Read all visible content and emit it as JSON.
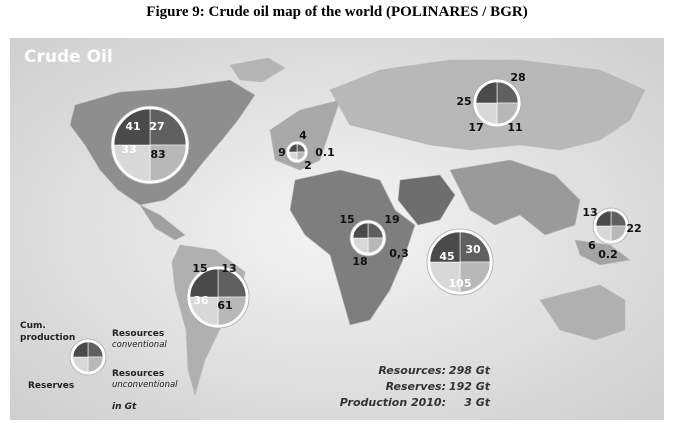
{
  "title": "Figure 9: Crude oil map of the world (POLINARES / BGR)",
  "map": {
    "heading": "Crude Oil",
    "regions": [
      {
        "labels": [
          "41",
          "27",
          "33",
          "83"
        ]
      },
      {
        "labels": [
          "4",
          "9",
          "0.1",
          "2"
        ]
      },
      {
        "labels": [
          "28",
          "25",
          "17",
          "11"
        ]
      },
      {
        "labels": [
          "15",
          "19",
          "0,3",
          "18"
        ]
      },
      {
        "labels": [
          "45",
          "30",
          "105"
        ]
      },
      {
        "labels": [
          "15",
          "13",
          "36",
          "61"
        ]
      },
      {
        "labels": [
          "13",
          "22",
          "6",
          "0.2"
        ]
      }
    ],
    "legend": {
      "cum_production": [
        "Cum.",
        "production"
      ],
      "resources_conventional": [
        "Resources",
        "conventional"
      ],
      "reserves": "Reserves",
      "resources_unconventional": [
        "Resources",
        "unconventional"
      ],
      "unit": "in Gt"
    },
    "totals": [
      {
        "label": "Resources:",
        "value": "298 Gt"
      },
      {
        "label": "Reserves:",
        "value": "192 Gt"
      },
      {
        "label": "Production 2010:",
        "value": "3 Gt"
      }
    ]
  }
}
